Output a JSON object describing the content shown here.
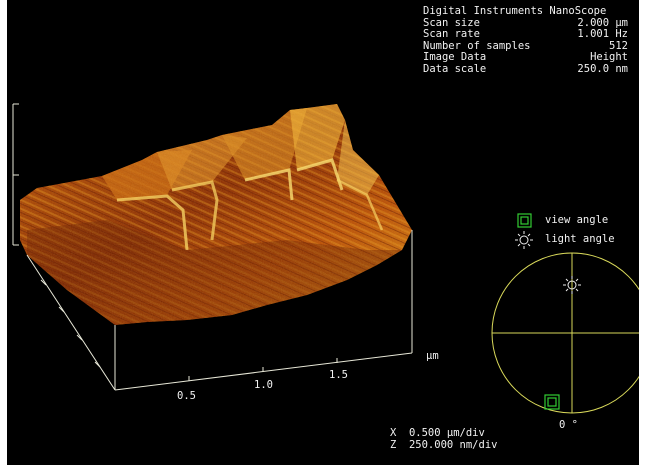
{
  "info_panel": {
    "title": "Digital Instruments NanoScope",
    "rows": [
      {
        "label": "Scan size",
        "value": "2.000 µm"
      },
      {
        "label": "Scan rate",
        "value": "1.001 Hz"
      },
      {
        "label": "Number of samples",
        "value": "512"
      },
      {
        "label": "Image Data",
        "value": "Height"
      },
      {
        "label": "Data scale",
        "value": "250.0 nm"
      }
    ]
  },
  "legend": {
    "view_angle_label": "view angle",
    "light_angle_label": "light angle"
  },
  "angle_readout": "0 °",
  "axis": {
    "unit": "µm",
    "ticks": [
      "0.5",
      "1.0",
      "1.5"
    ]
  },
  "scale": {
    "x_line": "X  0.500 µm/div",
    "z_line": "Z  250.000 nm/div"
  },
  "colors": {
    "background": "#000000",
    "text": "#f2f2f2",
    "axis_line": "#e8e8d8",
    "dial_line": "#d9d95a",
    "view_marker": "#33cc33",
    "light_marker": "#f0f0f0",
    "surface_dark": "#5a1400",
    "surface_mid": "#b34a00",
    "surface_light": "#f0b020"
  },
  "icons": {
    "view_marker": "square-in-square",
    "light_marker": "sun"
  }
}
